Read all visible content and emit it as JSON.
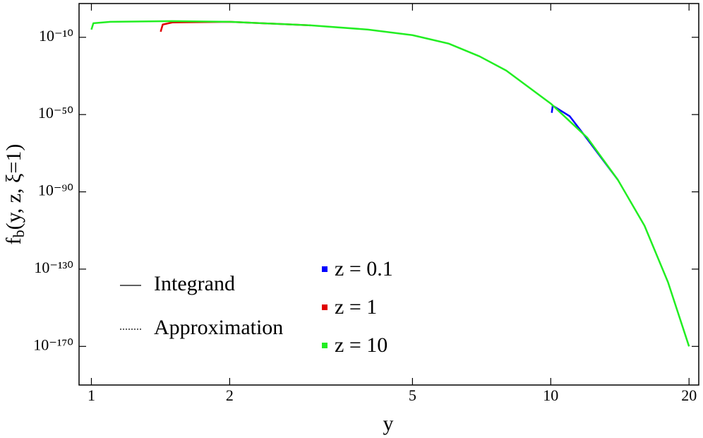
{
  "chart_data": {
    "type": "line",
    "xlabel": "y",
    "ylabel": "fb(y, z, ξ=1)",
    "xscale": "log",
    "yscale": "log",
    "xlim": [
      0.94,
      21
    ],
    "ylim": [
      1e-190,
      30000000.0
    ],
    "xticks": [
      1,
      2,
      5,
      10,
      20
    ],
    "yticks": [
      {
        "value": 1e-10,
        "label": "10⁻¹⁰"
      },
      {
        "value": 1e-50,
        "label": "10⁻⁵⁰"
      },
      {
        "value": 1e-90,
        "label": "10⁻⁹⁰"
      },
      {
        "value": 1e-130,
        "label": "10⁻¹³⁰"
      },
      {
        "value": 1e-170,
        "label": "10⁻¹⁷⁰"
      }
    ],
    "style_legend": [
      {
        "name": "Integrand",
        "dash": "solid"
      },
      {
        "name": "Approximation",
        "dash": "dotted"
      }
    ],
    "series": [
      {
        "name": "z = 0.1",
        "color": "#0000ff",
        "x": [
          10.05,
          10.1,
          11,
          12,
          14
        ],
        "values": [
          8e-50,
          4e-46,
          1.3e-51,
          2.5e-63,
          1.6e-84
        ]
      },
      {
        "name": "z = 1",
        "color": "#e00000",
        "x": [
          1.415,
          1.43,
          1.5,
          2,
          3
        ],
        "values": [
          8e-08,
          0.0004,
          0.005,
          0.01,
          0.00016
        ]
      },
      {
        "name": "z = 10",
        "color": "#22ee22",
        "x": [
          1.0,
          1.01,
          1.1,
          1.5,
          2,
          3,
          4,
          5,
          6,
          7,
          8,
          10,
          12,
          14,
          16,
          18,
          20
        ],
        "values": [
          1e-06,
          0.002,
          0.01,
          0.025,
          0.01,
          0.00016,
          1e-06,
          1.3e-09,
          5e-14,
          1.3e-20,
          6e-28,
          5e-45,
          1.3e-62,
          1.6e-84,
          3e-108,
          1.6e-137,
          1e-170
        ]
      }
    ]
  }
}
